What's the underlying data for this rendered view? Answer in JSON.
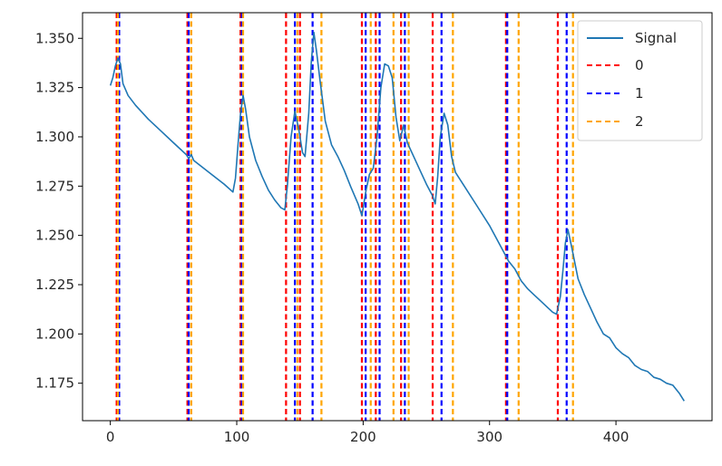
{
  "chart_data": {
    "type": "line",
    "title": "",
    "xlabel": "",
    "ylabel": "",
    "xlim": [
      -22,
      476
    ],
    "ylim": [
      1.156,
      1.363
    ],
    "x_ticks": [
      0,
      100,
      200,
      300,
      400
    ],
    "x_tick_labels": [
      "0",
      "100",
      "200",
      "300",
      "400"
    ],
    "y_ticks": [
      1.175,
      1.2,
      1.225,
      1.25,
      1.275,
      1.3,
      1.325,
      1.35
    ],
    "y_tick_labels": [
      "1.175",
      "1.200",
      "1.225",
      "1.250",
      "1.275",
      "1.300",
      "1.325",
      "1.350"
    ],
    "grid": false,
    "legend_position": "top-right",
    "series": [
      {
        "name": "Signal",
        "color": "#1f77b4",
        "style": "solid",
        "points": [
          [
            0,
            1.326
          ],
          [
            2,
            1.33
          ],
          [
            4,
            1.336
          ],
          [
            6,
            1.34
          ],
          [
            8,
            1.337
          ],
          [
            10,
            1.327
          ],
          [
            14,
            1.321
          ],
          [
            20,
            1.316
          ],
          [
            30,
            1.309
          ],
          [
            40,
            1.303
          ],
          [
            50,
            1.297
          ],
          [
            55,
            1.294
          ],
          [
            60,
            1.291
          ],
          [
            62,
            1.289
          ],
          [
            64,
            1.291
          ],
          [
            66,
            1.288
          ],
          [
            70,
            1.286
          ],
          [
            80,
            1.281
          ],
          [
            90,
            1.276
          ],
          [
            97,
            1.272
          ],
          [
            99,
            1.279
          ],
          [
            101,
            1.296
          ],
          [
            103,
            1.312
          ],
          [
            105,
            1.321
          ],
          [
            107,
            1.314
          ],
          [
            110,
            1.3
          ],
          [
            115,
            1.288
          ],
          [
            120,
            1.28
          ],
          [
            125,
            1.273
          ],
          [
            130,
            1.268
          ],
          [
            135,
            1.264
          ],
          [
            138,
            1.263
          ],
          [
            140,
            1.275
          ],
          [
            143,
            1.3
          ],
          [
            146,
            1.313
          ],
          [
            149,
            1.304
          ],
          [
            152,
            1.292
          ],
          [
            154,
            1.29
          ],
          [
            157,
            1.312
          ],
          [
            159,
            1.338
          ],
          [
            161,
            1.353
          ],
          [
            163,
            1.344
          ],
          [
            166,
            1.328
          ],
          [
            170,
            1.308
          ],
          [
            175,
            1.296
          ],
          [
            180,
            1.29
          ],
          [
            185,
            1.283
          ],
          [
            190,
            1.275
          ],
          [
            196,
            1.266
          ],
          [
            199,
            1.26
          ],
          [
            202,
            1.272
          ],
          [
            205,
            1.281
          ],
          [
            208,
            1.284
          ],
          [
            211,
            1.3
          ],
          [
            214,
            1.325
          ],
          [
            217,
            1.337
          ],
          [
            220,
            1.336
          ],
          [
            223,
            1.33
          ],
          [
            226,
            1.31
          ],
          [
            229,
            1.298
          ],
          [
            232,
            1.306
          ],
          [
            235,
            1.297
          ],
          [
            240,
            1.29
          ],
          [
            245,
            1.283
          ],
          [
            250,
            1.276
          ],
          [
            255,
            1.27
          ],
          [
            257,
            1.266
          ],
          [
            259,
            1.28
          ],
          [
            261,
            1.3
          ],
          [
            264,
            1.312
          ],
          [
            267,
            1.306
          ],
          [
            270,
            1.29
          ],
          [
            273,
            1.282
          ],
          [
            280,
            1.275
          ],
          [
            290,
            1.265
          ],
          [
            300,
            1.255
          ],
          [
            310,
            1.243
          ],
          [
            315,
            1.237
          ],
          [
            320,
            1.233
          ],
          [
            325,
            1.227
          ],
          [
            330,
            1.223
          ],
          [
            335,
            1.22
          ],
          [
            340,
            1.217
          ],
          [
            345,
            1.214
          ],
          [
            350,
            1.211
          ],
          [
            353,
            1.21
          ],
          [
            356,
            1.219
          ],
          [
            358,
            1.232
          ],
          [
            360,
            1.246
          ],
          [
            362,
            1.253
          ],
          [
            365,
            1.244
          ],
          [
            370,
            1.228
          ],
          [
            375,
            1.22
          ],
          [
            380,
            1.213
          ],
          [
            385,
            1.206
          ],
          [
            390,
            1.2
          ],
          [
            395,
            1.198
          ],
          [
            400,
            1.193
          ],
          [
            405,
            1.19
          ],
          [
            410,
            1.188
          ],
          [
            415,
            1.184
          ],
          [
            420,
            1.182
          ],
          [
            425,
            1.181
          ],
          [
            430,
            1.178
          ],
          [
            435,
            1.177
          ],
          [
            440,
            1.175
          ],
          [
            445,
            1.174
          ],
          [
            450,
            1.17
          ],
          [
            454,
            1.166
          ]
        ]
      }
    ],
    "vline_series": [
      {
        "name": "0",
        "color": "#ff0000",
        "style": "dashed",
        "x": [
          5,
          61,
          103,
          139,
          150,
          199,
          210,
          230,
          255,
          313,
          354
        ]
      },
      {
        "name": "1",
        "color": "#0000ff",
        "style": "dashed",
        "x": [
          7,
          62,
          104,
          146,
          160,
          202,
          213,
          233,
          262,
          314,
          361
        ]
      },
      {
        "name": "2",
        "color": "#ffa500",
        "style": "dashed",
        "x": [
          6,
          64,
          105,
          148,
          167,
          206,
          224,
          236,
          271,
          323,
          366
        ]
      }
    ]
  }
}
